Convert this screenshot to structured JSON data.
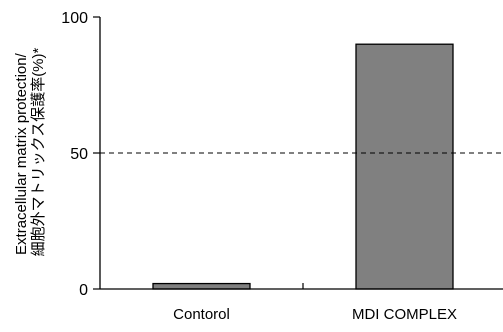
{
  "chart_data": {
    "type": "bar",
    "categories": [
      "Contorol",
      "MDI COMPLEX"
    ],
    "values": [
      2,
      90
    ],
    "ylabel_lines": [
      "Extracellular matrix protection/",
      "細胞外マトリックス保護率(%)*"
    ],
    "ylim": [
      0,
      100
    ],
    "yticks": [
      0,
      50,
      100
    ],
    "reference_line": 50,
    "grid": false,
    "bar_color": "#808080",
    "bar_edge_color": "#000000",
    "reference_line_style": "dashed"
  }
}
